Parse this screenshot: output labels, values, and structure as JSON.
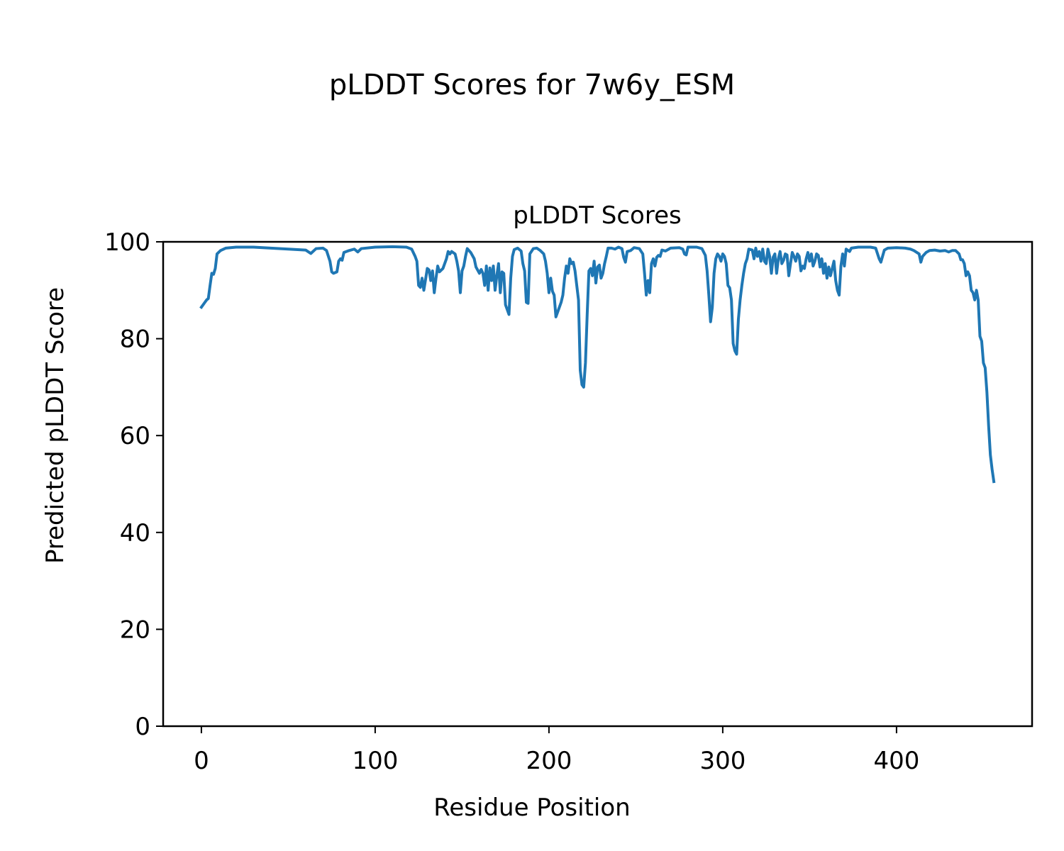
{
  "figure": {
    "suptitle": "pLDDT Scores for 7w6y_ESM"
  },
  "chart_data": {
    "type": "line",
    "title": "pLDDT Scores",
    "xlabel": "Residue Position",
    "ylabel": "Predicted pLDDT Score",
    "xlim": [
      -22,
      478
    ],
    "ylim": [
      0,
      100
    ],
    "xticks": [
      0,
      100,
      200,
      300,
      400
    ],
    "yticks": [
      0,
      20,
      40,
      60,
      80,
      100
    ],
    "grid": false,
    "legend": "none",
    "series": [
      {
        "color": "#1f77b4",
        "points": [
          [
            0,
            86.5
          ],
          [
            2,
            87.5
          ],
          [
            3,
            88
          ],
          [
            4,
            88.3
          ],
          [
            5,
            91
          ],
          [
            6,
            93.5
          ],
          [
            7,
            93.3
          ],
          [
            8,
            94.5
          ],
          [
            9,
            97.5
          ],
          [
            11,
            98.2
          ],
          [
            14,
            98.7
          ],
          [
            20,
            98.9
          ],
          [
            30,
            98.9
          ],
          [
            40,
            98.7
          ],
          [
            50,
            98.5
          ],
          [
            60,
            98.3
          ],
          [
            63,
            97.6
          ],
          [
            66,
            98.6
          ],
          [
            70,
            98.7
          ],
          [
            72,
            98.2
          ],
          [
            74,
            96
          ],
          [
            75,
            93.8
          ],
          [
            76,
            93.5
          ],
          [
            78,
            93.8
          ],
          [
            79,
            96
          ],
          [
            80,
            96.5
          ],
          [
            81,
            96.2
          ],
          [
            82,
            97.8
          ],
          [
            85,
            98.2
          ],
          [
            88,
            98.5
          ],
          [
            90,
            97.9
          ],
          [
            92,
            98.6
          ],
          [
            100,
            98.9
          ],
          [
            110,
            99
          ],
          [
            118,
            98.9
          ],
          [
            121,
            98.5
          ],
          [
            123,
            97
          ],
          [
            124,
            96
          ],
          [
            125,
            91
          ],
          [
            126,
            90.6
          ],
          [
            127,
            92.5
          ],
          [
            128,
            90
          ],
          [
            130,
            94.5
          ],
          [
            131,
            94.2
          ],
          [
            132,
            92
          ],
          [
            133,
            94
          ],
          [
            134,
            89.5
          ],
          [
            135,
            92.5
          ],
          [
            136,
            95
          ],
          [
            137,
            93.8
          ],
          [
            139,
            94.5
          ],
          [
            141,
            96.5
          ],
          [
            142,
            98
          ],
          [
            143,
            97.5
          ],
          [
            144,
            98
          ],
          [
            146,
            97.5
          ],
          [
            147,
            96
          ],
          [
            148,
            94
          ],
          [
            149,
            89.5
          ],
          [
            150,
            94
          ],
          [
            151,
            95
          ],
          [
            152,
            97
          ],
          [
            153,
            98.6
          ],
          [
            155,
            97.8
          ],
          [
            157,
            96.5
          ],
          [
            158,
            94.8
          ],
          [
            160,
            93.5
          ],
          [
            161,
            94.3
          ],
          [
            162,
            93.5
          ],
          [
            163,
            91
          ],
          [
            164,
            95
          ],
          [
            165,
            90
          ],
          [
            166,
            94.6
          ],
          [
            167,
            92
          ],
          [
            168,
            95
          ],
          [
            169,
            90
          ],
          [
            170,
            93
          ],
          [
            171,
            95.5
          ],
          [
            172,
            89.5
          ],
          [
            173,
            93.8
          ],
          [
            174,
            93.5
          ],
          [
            175,
            87
          ],
          [
            176,
            86
          ],
          [
            177,
            85
          ],
          [
            178,
            92.5
          ],
          [
            179,
            97
          ],
          [
            180,
            98.4
          ],
          [
            182,
            98.7
          ],
          [
            184,
            98.1
          ],
          [
            185,
            95.5
          ],
          [
            186,
            94
          ],
          [
            187,
            87.5
          ],
          [
            188,
            87.3
          ],
          [
            189,
            97.5
          ],
          [
            191,
            98.6
          ],
          [
            193,
            98.7
          ],
          [
            195,
            98.2
          ],
          [
            197,
            97.5
          ],
          [
            198,
            96
          ],
          [
            199,
            93.5
          ],
          [
            200,
            89.5
          ],
          [
            201,
            92.5
          ],
          [
            202,
            89.8
          ],
          [
            203,
            89
          ],
          [
            204,
            84.5
          ],
          [
            205,
            85.5
          ],
          [
            207,
            87.5
          ],
          [
            208,
            89
          ],
          [
            209,
            92.5
          ],
          [
            210,
            95
          ],
          [
            211,
            93.5
          ],
          [
            212,
            96.5
          ],
          [
            213,
            95.5
          ],
          [
            214,
            95.8
          ],
          [
            215,
            94
          ],
          [
            216,
            91
          ],
          [
            217,
            88
          ],
          [
            218,
            73.5
          ],
          [
            219,
            70.5
          ],
          [
            220,
            70
          ],
          [
            221,
            75
          ],
          [
            222,
            85
          ],
          [
            223,
            94
          ],
          [
            224,
            94.5
          ],
          [
            225,
            93
          ],
          [
            226,
            96
          ],
          [
            227,
            91.5
          ],
          [
            228,
            94.8
          ],
          [
            229,
            95.2
          ],
          [
            230,
            92.5
          ],
          [
            231,
            93.5
          ],
          [
            232,
            95.5
          ],
          [
            233,
            97
          ],
          [
            234,
            98.7
          ],
          [
            236,
            98.7
          ],
          [
            238,
            98.5
          ],
          [
            240,
            98.9
          ],
          [
            242,
            98.6
          ],
          [
            243,
            96.8
          ],
          [
            244,
            95.8
          ],
          [
            245,
            98
          ],
          [
            247,
            98.2
          ],
          [
            249,
            98.8
          ],
          [
            252,
            98.6
          ],
          [
            254,
            97.5
          ],
          [
            255,
            93.5
          ],
          [
            256,
            89
          ],
          [
            257,
            92
          ],
          [
            258,
            89.5
          ],
          [
            259,
            95.5
          ],
          [
            260,
            96.5
          ],
          [
            261,
            95
          ],
          [
            262,
            96.8
          ],
          [
            263,
            97.2
          ],
          [
            264,
            97
          ],
          [
            265,
            98.3
          ],
          [
            267,
            98.1
          ],
          [
            268,
            98.3
          ],
          [
            270,
            98.7
          ],
          [
            275,
            98.8
          ],
          [
            277,
            98.5
          ],
          [
            278,
            97.5
          ],
          [
            279,
            97.3
          ],
          [
            280,
            98.9
          ],
          [
            285,
            98.9
          ],
          [
            288,
            98.6
          ],
          [
            290,
            97.2
          ],
          [
            291,
            94
          ],
          [
            292,
            89
          ],
          [
            293,
            83.5
          ],
          [
            294,
            86.5
          ],
          [
            295,
            93.5
          ],
          [
            296,
            96.5
          ],
          [
            297,
            97.5
          ],
          [
            298,
            97
          ],
          [
            299,
            96
          ],
          [
            300,
            97.5
          ],
          [
            301,
            97
          ],
          [
            302,
            95.5
          ],
          [
            303,
            91
          ],
          [
            304,
            90.5
          ],
          [
            305,
            88
          ],
          [
            306,
            79
          ],
          [
            307,
            77.5
          ],
          [
            308,
            76.8
          ],
          [
            309,
            84
          ],
          [
            310,
            88
          ],
          [
            311,
            91
          ],
          [
            312,
            93.5
          ],
          [
            313,
            95.5
          ],
          [
            314,
            96.5
          ],
          [
            315,
            98.5
          ],
          [
            317,
            98.3
          ],
          [
            318,
            96.5
          ],
          [
            319,
            98.7
          ],
          [
            320,
            97
          ],
          [
            321,
            98
          ],
          [
            322,
            96
          ],
          [
            323,
            98.5
          ],
          [
            324,
            96
          ],
          [
            325,
            95.5
          ],
          [
            326,
            98.5
          ],
          [
            327,
            97
          ],
          [
            328,
            93.5
          ],
          [
            329,
            96.8
          ],
          [
            330,
            97.5
          ],
          [
            331,
            93.5
          ],
          [
            332,
            96.5
          ],
          [
            333,
            98
          ],
          [
            334,
            95.5
          ],
          [
            335,
            96.2
          ],
          [
            336,
            97.5
          ],
          [
            337,
            97.3
          ],
          [
            338,
            93
          ],
          [
            339,
            95.5
          ],
          [
            340,
            97.8
          ],
          [
            341,
            97
          ],
          [
            342,
            96
          ],
          [
            343,
            97.5
          ],
          [
            344,
            97
          ],
          [
            345,
            94
          ],
          [
            346,
            95
          ],
          [
            347,
            94.5
          ],
          [
            348,
            96.5
          ],
          [
            349,
            97.8
          ],
          [
            350,
            96
          ],
          [
            351,
            97.5
          ],
          [
            352,
            95
          ],
          [
            353,
            96
          ],
          [
            354,
            97.5
          ],
          [
            355,
            97.2
          ],
          [
            356,
            94.8
          ],
          [
            357,
            96.5
          ],
          [
            358,
            93.5
          ],
          [
            359,
            95.5
          ],
          [
            360,
            92.5
          ],
          [
            361,
            94.8
          ],
          [
            362,
            93
          ],
          [
            363,
            94.5
          ],
          [
            364,
            96
          ],
          [
            365,
            92
          ],
          [
            366,
            90
          ],
          [
            367,
            89
          ],
          [
            368,
            95
          ],
          [
            369,
            97.5
          ],
          [
            370,
            95
          ],
          [
            371,
            98.5
          ],
          [
            373,
            98
          ],
          [
            374,
            98.7
          ],
          [
            378,
            98.9
          ],
          [
            385,
            98.9
          ],
          [
            388,
            98.7
          ],
          [
            390,
            96.5
          ],
          [
            391,
            95.8
          ],
          [
            393,
            98.3
          ],
          [
            395,
            98.7
          ],
          [
            400,
            98.8
          ],
          [
            405,
            98.7
          ],
          [
            408,
            98.5
          ],
          [
            410,
            98.2
          ],
          [
            413,
            97.5
          ],
          [
            414,
            95.8
          ],
          [
            415,
            97
          ],
          [
            417,
            97.8
          ],
          [
            419,
            98.2
          ],
          [
            422,
            98.3
          ],
          [
            425,
            98.1
          ],
          [
            428,
            98.2
          ],
          [
            430,
            97.9
          ],
          [
            432,
            98.2
          ],
          [
            434,
            98.2
          ],
          [
            436,
            97.5
          ],
          [
            437,
            96.3
          ],
          [
            438,
            96.3
          ],
          [
            439,
            95.5
          ],
          [
            440,
            93
          ],
          [
            441,
            93.8
          ],
          [
            442,
            93
          ],
          [
            443,
            90
          ],
          [
            444,
            89.5
          ],
          [
            445,
            88
          ],
          [
            446,
            90
          ],
          [
            447,
            88
          ],
          [
            448,
            80.5
          ],
          [
            449,
            79.5
          ],
          [
            450,
            75
          ],
          [
            451,
            74
          ],
          [
            452,
            69
          ],
          [
            453,
            62
          ],
          [
            454,
            56
          ],
          [
            455,
            53
          ],
          [
            456,
            50.5
          ]
        ]
      }
    ]
  }
}
